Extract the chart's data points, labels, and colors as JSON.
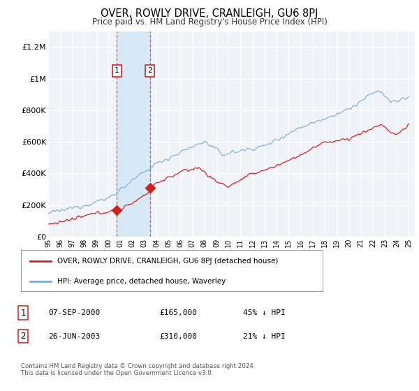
{
  "title": "OVER, ROWLY DRIVE, CRANLEIGH, GU6 8PJ",
  "subtitle": "Price paid vs. HM Land Registry's House Price Index (HPI)",
  "ylim": [
    0,
    1300000
  ],
  "yticks": [
    0,
    200000,
    400000,
    600000,
    800000,
    1000000,
    1200000
  ],
  "ytick_labels": [
    "£0",
    "£200K",
    "£400K",
    "£600K",
    "£800K",
    "£1M",
    "£1.2M"
  ],
  "background_color": "#ffffff",
  "plot_bg_color": "#f0f4f8",
  "hpi_color": "#7aadd4",
  "price_color": "#cc2222",
  "shade_color": "#d8e8f5",
  "dashed_color": "#cc4444",
  "legend_items": [
    "OVER, ROWLY DRIVE, CRANLEIGH, GU6 8PJ (detached house)",
    "HPI: Average price, detached house, Waverley"
  ],
  "table_rows": [
    {
      "num": "1",
      "date": "07-SEP-2000",
      "price": "£165,000",
      "hpi": "45% ↓ HPI"
    },
    {
      "num": "2",
      "date": "26-JUN-2003",
      "price": "£310,000",
      "hpi": "21% ↓ HPI"
    }
  ],
  "footer": "Contains HM Land Registry data © Crown copyright and database right 2024.\nThis data is licensed under the Open Government Licence v3.0.",
  "sale1_year": 2000.708,
  "sale1_price": 165000,
  "sale2_year": 2003.458,
  "sale2_price": 310000
}
